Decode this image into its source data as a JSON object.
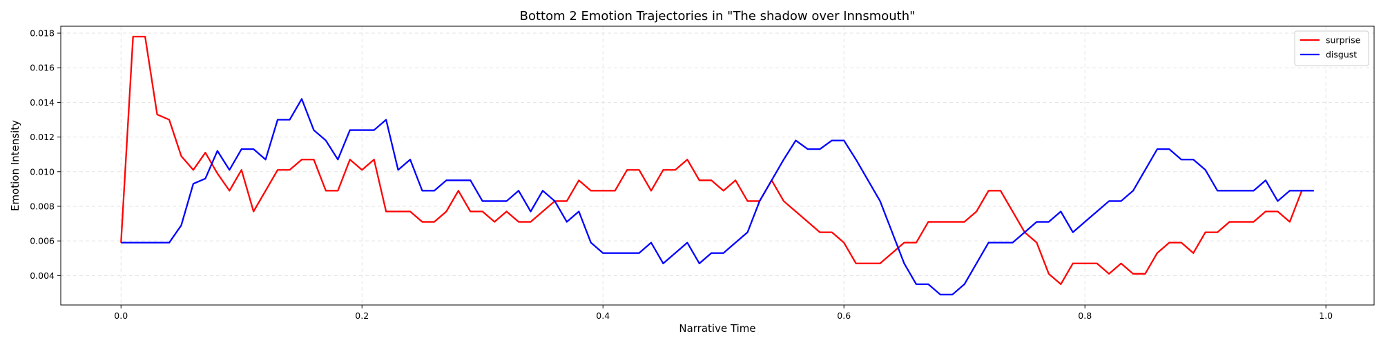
{
  "chart_data": {
    "type": "line",
    "title": "Bottom 2 Emotion Trajectories in \"The shadow over Innsmouth\"",
    "xlabel": "Narrative Time",
    "ylabel": "Emotion Intensity",
    "xlim": [
      -0.05,
      1.04
    ],
    "ylim": [
      0.0023,
      0.0184
    ],
    "xticks": [
      0.0,
      0.2,
      0.4,
      0.6,
      0.8,
      1.0
    ],
    "xtick_labels": [
      "0.0",
      "0.2",
      "0.4",
      "0.6",
      "0.8",
      "1.0"
    ],
    "yticks": [
      0.004,
      0.006,
      0.008,
      0.01,
      0.012,
      0.014,
      0.016,
      0.018
    ],
    "ytick_labels": [
      "0.004",
      "0.006",
      "0.008",
      "0.010",
      "0.012",
      "0.014",
      "0.016",
      "0.018"
    ],
    "grid": true,
    "legend_position": "top-right",
    "x": [
      0.0,
      0.01,
      0.02,
      0.03,
      0.04,
      0.05,
      0.06,
      0.07,
      0.08,
      0.09,
      0.1,
      0.11,
      0.12,
      0.13,
      0.14,
      0.15,
      0.16,
      0.17,
      0.18,
      0.19,
      0.2,
      0.21,
      0.22,
      0.23,
      0.24,
      0.25,
      0.26,
      0.27,
      0.28,
      0.29,
      0.3,
      0.31,
      0.32,
      0.33,
      0.34,
      0.35,
      0.36,
      0.37,
      0.38,
      0.39,
      0.4,
      0.41,
      0.42,
      0.43,
      0.44,
      0.45,
      0.46,
      0.47,
      0.48,
      0.49,
      0.5,
      0.51,
      0.52,
      0.53,
      0.54,
      0.55,
      0.56,
      0.57,
      0.58,
      0.59,
      0.6,
      0.61,
      0.62,
      0.63,
      0.64,
      0.65,
      0.66,
      0.67,
      0.68,
      0.69,
      0.7,
      0.71,
      0.72,
      0.73,
      0.74,
      0.75,
      0.76,
      0.77,
      0.78,
      0.79,
      0.8,
      0.81,
      0.82,
      0.83,
      0.84,
      0.85,
      0.86,
      0.87,
      0.88,
      0.89,
      0.9,
      0.91,
      0.92,
      0.93,
      0.94,
      0.95,
      0.96,
      0.97,
      0.98,
      0.99
    ],
    "series": [
      {
        "name": "surprise",
        "color": "#ff0000",
        "values": [
          0.0059,
          0.0178,
          0.0178,
          0.0133,
          0.013,
          0.0109,
          0.0101,
          0.0111,
          0.0099,
          0.0089,
          0.0101,
          0.0077,
          0.0089,
          0.0101,
          0.0101,
          0.0107,
          0.0107,
          0.0089,
          0.0089,
          0.0107,
          0.0101,
          0.0107,
          0.0077,
          0.0077,
          0.0077,
          0.0071,
          0.0071,
          0.0077,
          0.0089,
          0.0077,
          0.0077,
          0.0071,
          0.0077,
          0.0071,
          0.0071,
          0.0077,
          0.0083,
          0.0083,
          0.0095,
          0.0089,
          0.0089,
          0.0089,
          0.0101,
          0.0101,
          0.0089,
          0.0101,
          0.0101,
          0.0107,
          0.0095,
          0.0095,
          0.0089,
          0.0095,
          0.0083,
          0.0083,
          0.0095,
          0.0083,
          0.0077,
          0.0071,
          0.0065,
          0.0065,
          0.0059,
          0.0047,
          0.0047,
          0.0047,
          0.0053,
          0.0059,
          0.0059,
          0.0071,
          0.0071,
          0.0071,
          0.0071,
          0.0077,
          0.0089,
          0.0089,
          0.0077,
          0.0065,
          0.0059,
          0.0041,
          0.0035,
          0.0047,
          0.0047,
          0.0047,
          0.0041,
          0.0047,
          0.0041,
          0.0041,
          0.0053,
          0.0059,
          0.0059,
          0.0053,
          0.0065,
          0.0065,
          0.0071,
          0.0071,
          0.0071,
          0.0077,
          0.0077,
          0.0071,
          0.0089,
          0.0089
        ]
      },
      {
        "name": "disgust",
        "color": "#0000ff",
        "values": [
          0.0059,
          0.0059,
          0.0059,
          0.0059,
          0.0059,
          0.0069,
          0.0093,
          0.0096,
          0.0112,
          0.0101,
          0.0113,
          0.0113,
          0.0107,
          0.013,
          0.013,
          0.0142,
          0.0124,
          0.0118,
          0.0107,
          0.0124,
          0.0124,
          0.0124,
          0.013,
          0.0101,
          0.0107,
          0.0089,
          0.0089,
          0.0095,
          0.0095,
          0.0095,
          0.0083,
          0.0083,
          0.0083,
          0.0089,
          0.0077,
          0.0089,
          0.0083,
          0.0071,
          0.0077,
          0.0059,
          0.0053,
          0.0053,
          0.0053,
          0.0053,
          0.0059,
          0.0047,
          0.0053,
          0.0059,
          0.0047,
          0.0053,
          0.0053,
          0.0059,
          0.0065,
          0.0083,
          0.0095,
          0.0107,
          0.0118,
          0.0113,
          0.0113,
          0.0118,
          0.0118,
          0.0107,
          0.0095,
          0.0083,
          0.0065,
          0.0047,
          0.0035,
          0.0035,
          0.0029,
          0.0029,
          0.0035,
          0.0047,
          0.0059,
          0.0059,
          0.0059,
          0.0065,
          0.0071,
          0.0071,
          0.0077,
          0.0065,
          0.0071,
          0.0077,
          0.0083,
          0.0083,
          0.0089,
          0.0101,
          0.0113,
          0.0113,
          0.0107,
          0.0107,
          0.0101,
          0.0089,
          0.0089,
          0.0089,
          0.0089,
          0.0095,
          0.0083,
          0.0089,
          0.0089,
          0.0089
        ]
      }
    ]
  }
}
